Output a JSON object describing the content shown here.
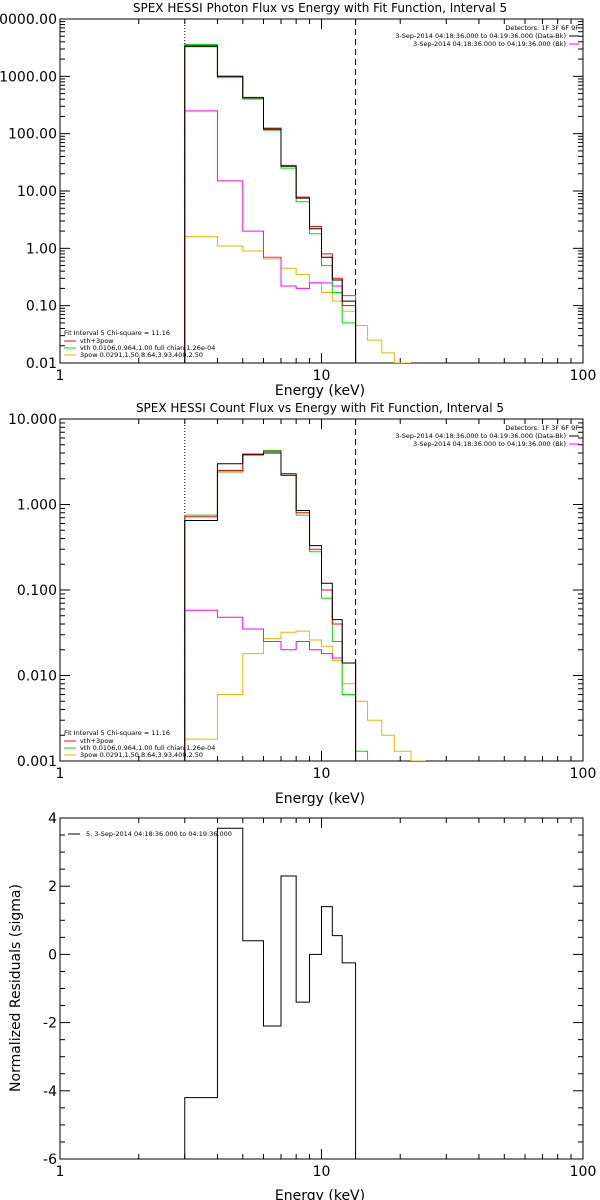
{
  "chart_data": [
    {
      "type": "line",
      "title": "SPEX HESSI Photon Flux vs Energy with Fit Function, Interval 5",
      "xlabel": "Energy (keV)",
      "ylabel": "",
      "xscale": "log",
      "yscale": "log",
      "xlim": [
        1,
        100
      ],
      "ylim": [
        0.01,
        10000
      ],
      "x_tick_labels": [
        "1",
        "10",
        "100"
      ],
      "y_tick_labels": [
        "0.01",
        "0.10",
        "1.00",
        "10.00",
        "100.00",
        "1000.00",
        "10000.00"
      ],
      "legend_top": [
        "Detectors: 1F 3F 6F 9F",
        "3-Sep-2014 04:18:36.000 to 04:19:36.000 (Data-Bk)",
        "3-Sep-2014 04:18:36.000 to 04:19:36.000 (Bk)"
      ],
      "legend_top_placement": "top-right",
      "legend_fit": [
        "Fit Interval 5   Chi-square = 11.16",
        "vth+3pow",
        "vth 0.0106,0.964,1.00  full chian,1.26e-04",
        "3pow 0.0291,1.50,8.64,3.93,400,2.50"
      ],
      "legend_fit_placement": "bottom-left",
      "vlines": [
        {
          "x": 3.0,
          "style": "dotted"
        },
        {
          "x": 13.5,
          "style": "dashed"
        }
      ],
      "bin_edges": [
        3.0,
        4.0,
        5.0,
        6.0,
        7.0,
        8.0,
        9.0,
        10.0,
        11.0,
        12.0,
        13.5,
        15.0,
        17.0,
        19.0,
        22.0
      ],
      "series": [
        {
          "name": "Data-Bk",
          "color": "#000000",
          "values": [
            3300,
            1000,
            420,
            120,
            27,
            7.5,
            2.2,
            0.7,
            0.28,
            0.12
          ]
        },
        {
          "name": "vth+3pow",
          "color": "#ff0000",
          "values": [
            3450,
            1010,
            430,
            125,
            28,
            7.8,
            2.4,
            0.8,
            0.3,
            0.1
          ]
        },
        {
          "name": "vth",
          "color": "#00dd00",
          "values": [
            3600,
            950,
            400,
            115,
            25,
            6.5,
            1.8,
            0.5,
            0.17,
            0.05
          ]
        },
        {
          "name": "3pow",
          "color": "#ff00ff",
          "values": [
            250,
            15,
            2.0,
            0.7,
            0.22,
            0.2,
            0.25,
            0.25,
            0.22,
            0.15
          ]
        },
        {
          "name": "",
          "color": "#e6b800",
          "values": [
            1.6,
            1.1,
            0.9,
            0.65,
            0.45,
            0.35,
            0.25,
            0.17,
            0.12,
            0.08,
            0.045,
            0.025,
            0.015,
            0.01
          ]
        }
      ]
    },
    {
      "type": "line",
      "title": "SPEX HESSI Count Flux vs Energy with Fit Function, Interval 5",
      "xlabel": "Energy (keV)",
      "ylabel": "",
      "xscale": "log",
      "yscale": "log",
      "xlim": [
        1,
        100
      ],
      "ylim": [
        0.001,
        10
      ],
      "x_tick_labels": [
        "1",
        "10",
        "100"
      ],
      "y_tick_labels": [
        "0.001",
        "0.010",
        "0.100",
        "1.000",
        "10.000"
      ],
      "legend_top": [
        "Detectors: 1F 3F 6F 9F",
        "3-Sep-2014 04:18:36.000 to 04:19:36.000 (Data-Bk)",
        "3-Sep-2014 04:18:36.000 to 04:19:36.000 (Bk)"
      ],
      "legend_top_placement": "top-right",
      "legend_fit": [
        "Fit Interval 5   Chi-square = 11.16",
        "vth+3pow",
        "vth 0.0106,0.964,1.00  full chian,1.26e-04",
        "3pow 0.0291,1.50,8.64,3.93,400,2.50"
      ],
      "legend_fit_placement": "bottom-left",
      "vlines": [
        {
          "x": 3.0,
          "style": "dotted"
        },
        {
          "x": 13.5,
          "style": "dashed"
        }
      ],
      "bin_edges": [
        3.0,
        4.0,
        5.0,
        6.0,
        7.0,
        8.0,
        9.0,
        10.0,
        11.0,
        12.0,
        13.5,
        15.0,
        17.0,
        19.0,
        22.0,
        25.0
      ],
      "series": [
        {
          "name": "Data-Bk",
          "color": "#000000",
          "values": [
            0.65,
            3.0,
            3.8,
            4.0,
            2.2,
            0.85,
            0.33,
            0.12,
            0.045,
            0.014
          ]
        },
        {
          "name": "vth+3pow",
          "color": "#ff0000",
          "values": [
            0.72,
            2.5,
            3.9,
            4.2,
            2.3,
            0.8,
            0.3,
            0.1,
            0.04,
            0.014
          ]
        },
        {
          "name": "vth",
          "color": "#00dd00",
          "values": [
            0.75,
            2.4,
            3.9,
            4.3,
            2.3,
            0.75,
            0.28,
            0.08,
            0.025,
            0.006,
            0.0013
          ]
        },
        {
          "name": "3pow",
          "color": "#ff00ff",
          "values": [
            0.058,
            0.048,
            0.035,
            0.025,
            0.02,
            0.025,
            0.02,
            0.018,
            0.016,
            0.014
          ]
        },
        {
          "name": "",
          "color": "#e6b800",
          "values": [
            0.0018,
            0.006,
            0.018,
            0.027,
            0.032,
            0.033,
            0.026,
            0.022,
            0.015,
            0.008,
            0.005,
            0.003,
            0.002,
            0.0013,
            0.001
          ]
        }
      ]
    },
    {
      "type": "line",
      "title": "",
      "xlabel": "Energy (keV)",
      "ylabel": "Normalized Residuals (sigma)",
      "xscale": "log",
      "yscale": "linear",
      "xlim": [
        1,
        100
      ],
      "ylim": [
        -6,
        4
      ],
      "x_tick_labels": [
        "1",
        "10",
        "100"
      ],
      "y_tick_labels": [
        "-6",
        "-4",
        "-2",
        "0",
        "2",
        "4"
      ],
      "legend_top": [
        "5,  3-Sep-2014 04:18:36.000 to 04:19:36.000"
      ],
      "legend_top_placement": "top-left",
      "bin_edges": [
        3.0,
        4.0,
        5.0,
        6.0,
        7.0,
        8.0,
        9.0,
        10.0,
        11.0,
        12.0,
        13.5
      ],
      "series": [
        {
          "name": "",
          "color": "#000000",
          "values": [
            -4.2,
            3.7,
            0.4,
            -2.1,
            2.3,
            -1.4,
            0.0,
            1.4,
            0.55,
            -0.25
          ]
        }
      ]
    }
  ]
}
